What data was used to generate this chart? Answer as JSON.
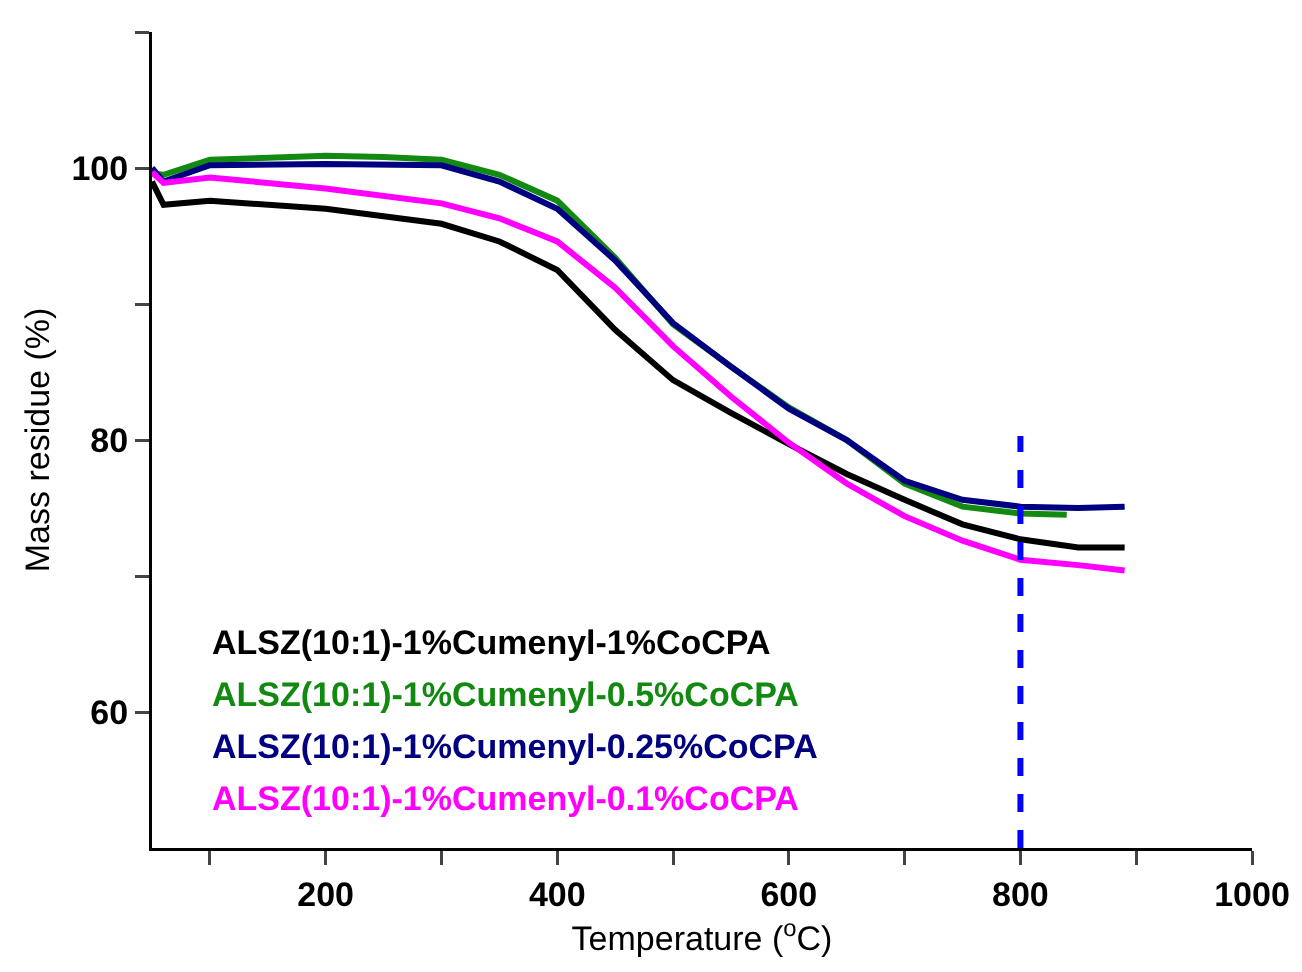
{
  "chart_data": {
    "type": "line",
    "xlabel": "Temperature ($^{o}$C)",
    "ylabel": "Mass residue (%)",
    "xlim": [
      50,
      1000
    ],
    "xticks": [
      {
        "value": 100,
        "label": null
      },
      200,
      {
        "value": 300,
        "label": null
      },
      400,
      {
        "value": 500,
        "label": null
      },
      600,
      {
        "value": 700,
        "label": null
      },
      800,
      {
        "value": 900,
        "label": null
      },
      1000
    ],
    "ylim": [
      50,
      110
    ],
    "yticks": [
      {
        "value": 70,
        "label": null
      },
      60,
      80,
      {
        "value": 90,
        "label": null
      },
      100,
      {
        "value": 110,
        "label": null
      }
    ],
    "grid": false,
    "legend": "bottom left",
    "marker": "none",
    "line_style": "solid",
    "ref_lines": [
      {
        "axis": "x",
        "value": 800,
        "color": "#0000ff",
        "line_style": "dashed"
      }
    ],
    "series": [
      {
        "name": "ALSZ(10:1)-1%Cumenyl-1%CoCPA",
        "color": "#000000",
        "x": [
          50,
          60,
          100,
          200,
          300,
          350,
          400,
          450,
          500,
          550,
          600,
          650,
          700,
          750,
          800,
          850,
          890
        ],
        "values": [
          99,
          97.3,
          97.6,
          97,
          95.9,
          94.6,
          92.5,
          88.1,
          84.4,
          82,
          79.7,
          77.5,
          75.6,
          73.8,
          72.7,
          72.1,
          72.1
        ]
      },
      {
        "name": "ALSZ(10:1)-1%Cumenyl-0.5%CoCPA",
        "color": "#128a12",
        "x": [
          50,
          60,
          100,
          200,
          250,
          300,
          350,
          400,
          450,
          500,
          550,
          600,
          650,
          700,
          750,
          800,
          840
        ],
        "values": [
          99.6,
          99.5,
          100.6,
          100.9,
          100.8,
          100.6,
          99.5,
          97.6,
          93.4,
          88.5,
          85.4,
          82.4,
          80,
          76.8,
          75.1,
          74.6,
          74.5
        ]
      },
      {
        "name": "ALSZ(10:1)-1%Cumenyl-0.25%CoCPA",
        "color": "#000080",
        "x": [
          50,
          60,
          100,
          200,
          300,
          350,
          400,
          450,
          500,
          550,
          600,
          650,
          700,
          750,
          800,
          850,
          890
        ],
        "values": [
          100,
          99,
          100.2,
          100.3,
          100.2,
          99,
          97,
          93.2,
          88.6,
          85.4,
          82.3,
          80,
          77,
          75.6,
          75.1,
          75,
          75.1
        ]
      },
      {
        "name": "ALSZ(10:1)-1%Cumenyl-0.1%CoCPA",
        "color": "#ff00ff",
        "x": [
          50,
          60,
          100,
          200,
          300,
          350,
          400,
          450,
          500,
          550,
          600,
          650,
          700,
          750,
          800,
          850,
          890
        ],
        "values": [
          99.7,
          98.9,
          99.3,
          98.5,
          97.4,
          96.3,
          94.6,
          91.2,
          86.9,
          83.2,
          79.8,
          76.8,
          74.4,
          72.6,
          71.2,
          70.8,
          70.4
        ]
      }
    ]
  }
}
